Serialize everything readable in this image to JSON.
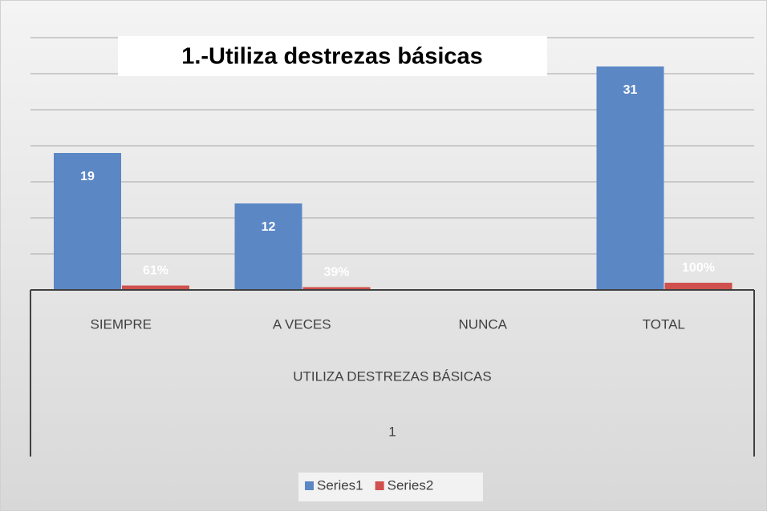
{
  "chart_data": {
    "type": "bar",
    "title": "1.-Utiliza destrezas básicas",
    "categories": [
      "SIEMPRE",
      "A VECES",
      "NUNCA",
      "TOTAL"
    ],
    "category_levels": [
      "UTILIZA DESTREZAS BÁSICAS",
      "1"
    ],
    "series": [
      {
        "name": "Series1",
        "color": "#5b87c5",
        "values": [
          19,
          12,
          null,
          31
        ],
        "value_labels": [
          "19",
          "12",
          null,
          "31"
        ]
      },
      {
        "name": "Series2",
        "color": "#d0504d",
        "values": [
          0.61,
          0.39,
          null,
          1
        ],
        "value_labels": [
          "61%",
          "39%",
          null,
          "100%"
        ]
      }
    ],
    "ylim": [
      0,
      35
    ],
    "yticks": [
      0,
      5,
      10,
      15,
      20,
      25,
      30,
      35
    ],
    "grid": true,
    "legend": "bottom"
  }
}
